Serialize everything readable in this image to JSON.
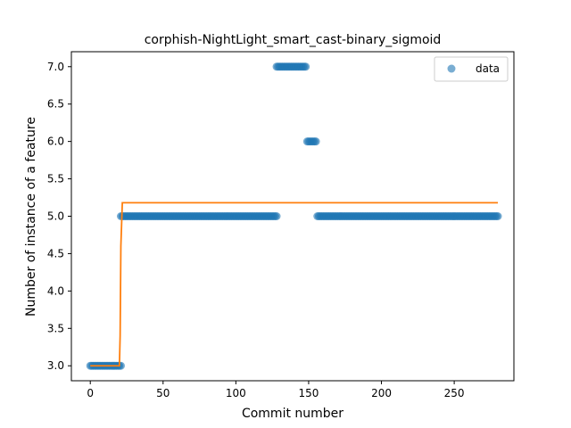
{
  "chart_data": {
    "type": "scatter",
    "title": "corphish-NightLight_smart_cast-binary_sigmoid",
    "xlabel": "Commit number",
    "ylabel": "Number of instance of a feature",
    "xlim": [
      -13,
      291
    ],
    "ylim": [
      2.8,
      7.2
    ],
    "xticks": [
      0,
      50,
      100,
      150,
      200,
      250
    ],
    "xtick_labels": [
      "0",
      "50",
      "100",
      "150",
      "200",
      "250"
    ],
    "yticks": [
      3.0,
      3.5,
      4.0,
      4.5,
      5.0,
      5.5,
      6.0,
      6.5,
      7.0
    ],
    "ytick_labels": [
      "3.0",
      "3.5",
      "4.0",
      "4.5",
      "5.0",
      "5.5",
      "6.0",
      "6.5",
      "7.0"
    ],
    "grid": false,
    "legend": {
      "position": "top-right",
      "entries": [
        "data"
      ]
    },
    "colors": {
      "data": "#1f77b4",
      "fit": "#ff7f0e"
    },
    "series": [
      {
        "name": "data",
        "kind": "scatter",
        "segments": [
          {
            "x_range": [
              0,
              21
            ],
            "y": 3
          },
          {
            "x_range": [
              21,
              128
            ],
            "y": 5
          },
          {
            "x_range": [
              128,
              148
            ],
            "y": 7
          },
          {
            "x_range": [
              149,
              155
            ],
            "y": 6
          },
          {
            "x_range": [
              156,
              280
            ],
            "y": 5
          }
        ]
      },
      {
        "kind": "line",
        "points": [
          [
            0,
            3.0
          ],
          [
            20,
            3.0
          ],
          [
            20.5,
            3.4
          ],
          [
            21,
            4.6
          ],
          [
            22,
            5.18
          ],
          [
            280,
            5.18
          ]
        ]
      }
    ]
  }
}
